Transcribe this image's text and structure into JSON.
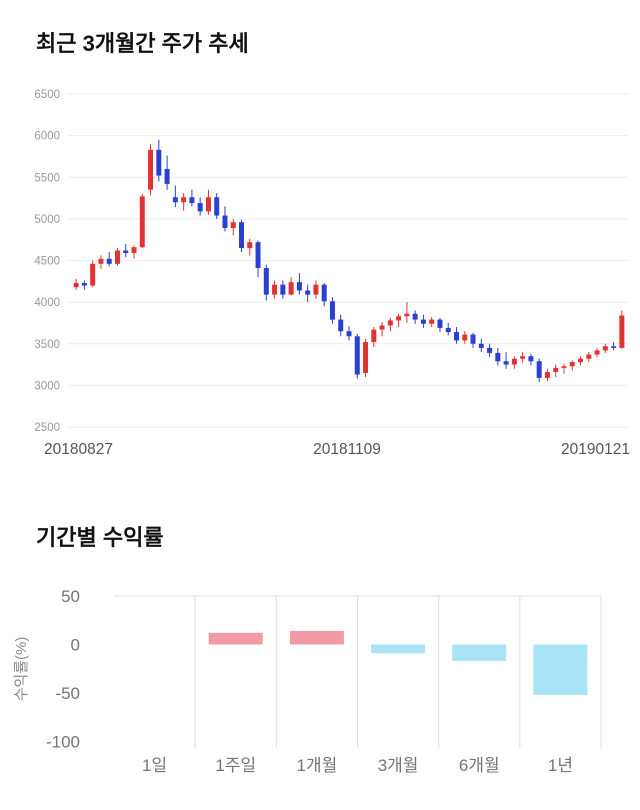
{
  "page": {
    "background": "#ffffff"
  },
  "chart_data": [
    {
      "type": "candlestick",
      "title": "최근 3개월간 주가 추세",
      "x_tick_labels": [
        "20180827",
        "20181109",
        "20190121"
      ],
      "y_ticks": [
        6500,
        6000,
        5500,
        5000,
        4500,
        4000,
        3500,
        3000,
        2500
      ],
      "ylim": [
        2500,
        6500
      ],
      "grid": "horizontal",
      "up_color": "#e03434",
      "down_color": "#2b3fd0",
      "candles": [
        [
          4180,
          4280,
          4150,
          4230
        ],
        [
          4230,
          4260,
          4150,
          4200
        ],
        [
          4200,
          4500,
          4180,
          4460
        ],
        [
          4460,
          4560,
          4400,
          4520
        ],
        [
          4520,
          4600,
          4430,
          4460
        ],
        [
          4460,
          4650,
          4440,
          4620
        ],
        [
          4620,
          4700,
          4540,
          4590
        ],
        [
          4590,
          4680,
          4520,
          4660
        ],
        [
          4660,
          5300,
          4650,
          5270
        ],
        [
          5350,
          5900,
          5280,
          5830
        ],
        [
          5830,
          5950,
          5450,
          5520
        ],
        [
          5600,
          5760,
          5350,
          5420
        ],
        [
          5260,
          5400,
          5140,
          5200
        ],
        [
          5200,
          5310,
          5100,
          5260
        ],
        [
          5260,
          5350,
          5150,
          5190
        ],
        [
          5190,
          5260,
          5040,
          5090
        ],
        [
          5090,
          5350,
          5050,
          5260
        ],
        [
          5260,
          5310,
          5000,
          5040
        ],
        [
          5040,
          5150,
          4850,
          4890
        ],
        [
          4890,
          5000,
          4800,
          4960
        ],
        [
          4960,
          4990,
          4600,
          4650
        ],
        [
          4650,
          4760,
          4560,
          4720
        ],
        [
          4720,
          4740,
          4300,
          4410
        ],
        [
          4410,
          4450,
          4020,
          4090
        ],
        [
          4090,
          4260,
          4040,
          4210
        ],
        [
          4210,
          4260,
          4040,
          4090
        ],
        [
          4090,
          4300,
          4080,
          4240
        ],
        [
          4240,
          4350,
          4090,
          4140
        ],
        [
          4140,
          4210,
          4000,
          4090
        ],
        [
          4090,
          4260,
          4040,
          4210
        ],
        [
          4210,
          4230,
          3950,
          4010
        ],
        [
          4010,
          4060,
          3740,
          3790
        ],
        [
          3790,
          3850,
          3590,
          3650
        ],
        [
          3650,
          3710,
          3540,
          3590
        ],
        [
          3590,
          3620,
          3080,
          3130
        ],
        [
          3150,
          3560,
          3100,
          3520
        ],
        [
          3520,
          3700,
          3460,
          3670
        ],
        [
          3670,
          3760,
          3590,
          3720
        ],
        [
          3720,
          3810,
          3650,
          3780
        ],
        [
          3780,
          3860,
          3700,
          3830
        ],
        [
          3830,
          4000,
          3750,
          3860
        ],
        [
          3860,
          3900,
          3740,
          3790
        ],
        [
          3790,
          3850,
          3690,
          3740
        ],
        [
          3740,
          3820,
          3700,
          3790
        ],
        [
          3790,
          3810,
          3640,
          3690
        ],
        [
          3690,
          3750,
          3600,
          3640
        ],
        [
          3640,
          3700,
          3500,
          3540
        ],
        [
          3540,
          3650,
          3500,
          3610
        ],
        [
          3610,
          3630,
          3450,
          3500
        ],
        [
          3500,
          3560,
          3400,
          3450
        ],
        [
          3450,
          3500,
          3340,
          3390
        ],
        [
          3390,
          3450,
          3240,
          3290
        ],
        [
          3290,
          3400,
          3200,
          3250
        ],
        [
          3250,
          3350,
          3200,
          3320
        ],
        [
          3320,
          3400,
          3270,
          3350
        ],
        [
          3350,
          3380,
          3240,
          3290
        ],
        [
          3290,
          3320,
          3040,
          3090
        ],
        [
          3090,
          3200,
          3050,
          3160
        ],
        [
          3160,
          3250,
          3100,
          3210
        ],
        [
          3210,
          3260,
          3140,
          3230
        ],
        [
          3230,
          3300,
          3180,
          3280
        ],
        [
          3280,
          3350,
          3240,
          3320
        ],
        [
          3320,
          3400,
          3280,
          3370
        ],
        [
          3370,
          3450,
          3340,
          3420
        ],
        [
          3420,
          3500,
          3390,
          3470
        ],
        [
          3470,
          3520,
          3420,
          3450
        ],
        [
          3450,
          3900,
          3440,
          3840
        ]
      ]
    },
    {
      "type": "bar",
      "title": "기간별 수익률",
      "ylabel": "수익률(%)",
      "categories": [
        "1일",
        "1주일",
        "1개월",
        "3개월",
        "6개월",
        "1년"
      ],
      "values": [
        0,
        12,
        14,
        -9,
        -17,
        -52
      ],
      "y_ticks": [
        50,
        0,
        -50,
        -100
      ],
      "ylim": [
        -100,
        50
      ],
      "grid": "vertical-splits-and-top-line",
      "legend": "none",
      "positive_color": "#f29aa6",
      "negative_color": "#a8e4f5"
    }
  ]
}
